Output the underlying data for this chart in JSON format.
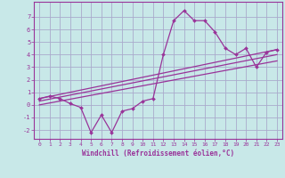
{
  "background_color": "#c8e8e8",
  "grid_color": "#aaaacc",
  "line_color": "#993399",
  "xlabel": "Windchill (Refroidissement éolien,°C)",
  "xlabel_color": "#993399",
  "tick_color": "#993399",
  "xlim": [
    -0.5,
    23.5
  ],
  "ylim": [
    -2.7,
    8.2
  ],
  "yticks": [
    -2,
    -1,
    0,
    1,
    2,
    3,
    4,
    5,
    6,
    7
  ],
  "xticks": [
    0,
    1,
    2,
    3,
    4,
    5,
    6,
    7,
    8,
    9,
    10,
    11,
    12,
    13,
    14,
    15,
    16,
    17,
    18,
    19,
    20,
    21,
    22,
    23
  ],
  "series1_x": [
    0,
    1,
    2,
    3,
    4,
    5,
    6,
    7,
    8,
    9,
    10,
    11,
    12,
    13,
    14,
    15,
    16,
    17,
    18,
    19,
    20,
    21,
    22,
    23
  ],
  "series1_y": [
    0.5,
    0.7,
    0.5,
    0.1,
    -0.2,
    -2.2,
    -0.8,
    -2.2,
    -0.5,
    -0.3,
    0.3,
    0.5,
    4.0,
    6.7,
    7.5,
    6.7,
    6.7,
    5.8,
    4.5,
    4.0,
    4.5,
    3.0,
    4.2,
    4.4
  ],
  "line2_x": [
    0,
    23
  ],
  "line2_y": [
    0.5,
    4.4
  ],
  "line3_x": [
    0,
    23
  ],
  "line3_y": [
    0.3,
    4.0
  ],
  "line4_x": [
    0,
    23
  ],
  "line4_y": [
    0.0,
    3.5
  ]
}
